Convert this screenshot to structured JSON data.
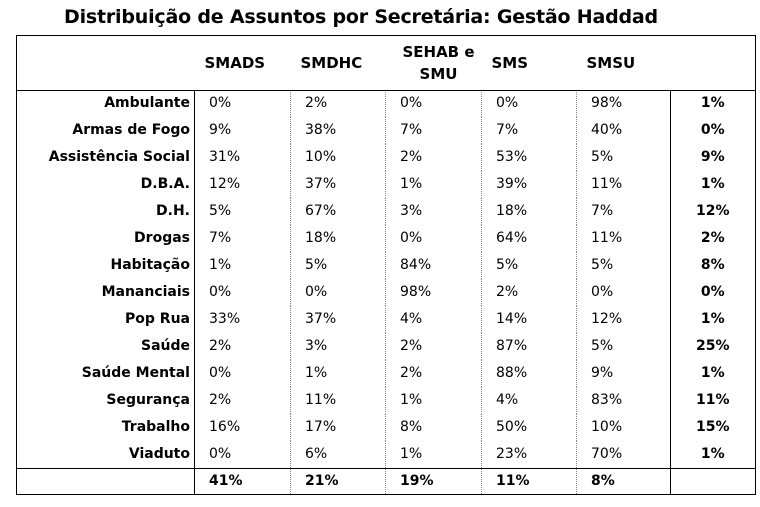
{
  "title": "Distribuição de Assuntos por Secretária: Gestão Haddad",
  "columns": [
    "SMADS",
    "SMDHC",
    "SEHAB e SMU",
    "SMS",
    "SMSU"
  ],
  "rows": [
    {
      "label": "Ambulante",
      "values": [
        "0%",
        "2%",
        "0%",
        "0%",
        "98%"
      ],
      "total": "1%"
    },
    {
      "label": "Armas de Fogo",
      "values": [
        "9%",
        "38%",
        "7%",
        "7%",
        "40%"
      ],
      "total": "0%"
    },
    {
      "label": "Assistência Social",
      "values": [
        "31%",
        "10%",
        "2%",
        "53%",
        "5%"
      ],
      "total": "9%"
    },
    {
      "label": "D.B.A.",
      "values": [
        "12%",
        "37%",
        "1%",
        "39%",
        "11%"
      ],
      "total": "1%"
    },
    {
      "label": "D.H.",
      "values": [
        "5%",
        "67%",
        "3%",
        "18%",
        "7%"
      ],
      "total": "12%"
    },
    {
      "label": "Drogas",
      "values": [
        "7%",
        "18%",
        "0%",
        "64%",
        "11%"
      ],
      "total": "2%"
    },
    {
      "label": "Habitação",
      "values": [
        "1%",
        "5%",
        "84%",
        "5%",
        "5%"
      ],
      "total": "8%"
    },
    {
      "label": "Mananciais",
      "values": [
        "0%",
        "0%",
        "98%",
        "2%",
        "0%"
      ],
      "total": "0%"
    },
    {
      "label": "Pop Rua",
      "values": [
        "33%",
        "37%",
        "4%",
        "14%",
        "12%"
      ],
      "total": "1%"
    },
    {
      "label": "Saúde",
      "values": [
        "2%",
        "3%",
        "2%",
        "87%",
        "5%"
      ],
      "total": "25%"
    },
    {
      "label": "Saúde Mental",
      "values": [
        "0%",
        "1%",
        "2%",
        "88%",
        "9%"
      ],
      "total": "1%"
    },
    {
      "label": "Segurança",
      "values": [
        "2%",
        "11%",
        "1%",
        "4%",
        "83%"
      ],
      "total": "11%"
    },
    {
      "label": "Trabalho",
      "values": [
        "16%",
        "17%",
        "8%",
        "50%",
        "10%"
      ],
      "total": "15%"
    },
    {
      "label": "Viaduto",
      "values": [
        "0%",
        "6%",
        "1%",
        "23%",
        "70%"
      ],
      "total": "1%"
    }
  ],
  "totals": [
    "41%",
    "21%",
    "19%",
    "11%",
    "8%"
  ]
}
